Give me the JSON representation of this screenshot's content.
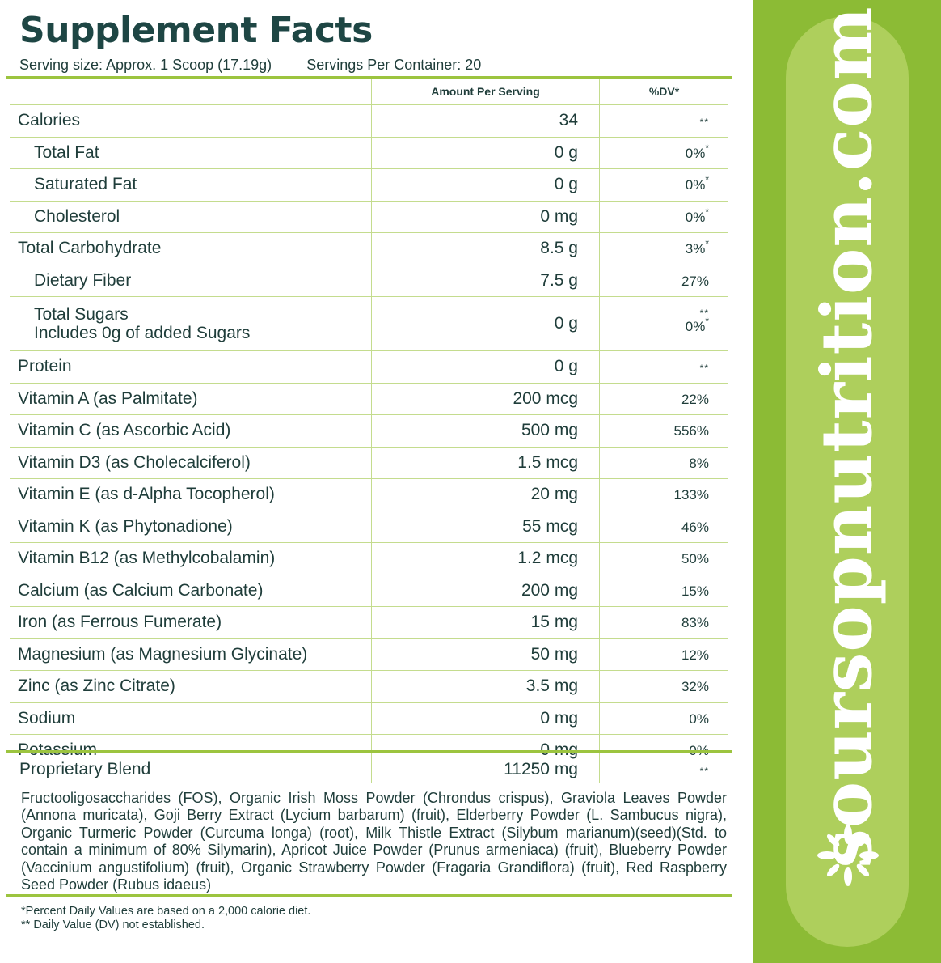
{
  "title": "Supplement Facts",
  "serving_size": "Serving size: Approx. 1 Scoop (17.19g)",
  "servings_per_container": "Servings Per Container: 20",
  "columns": {
    "amount": "Amount Per Serving",
    "dv": "%DV*"
  },
  "rows": [
    {
      "name": "Calories",
      "amount": "34",
      "dv": "",
      "mark": "**",
      "indent": false
    },
    {
      "name": "Total Fat",
      "amount": "0 g",
      "dv": "0%",
      "mark": "*",
      "indent": true
    },
    {
      "name": "Saturated Fat",
      "amount": "0 g",
      "dv": "0%",
      "mark": "*",
      "indent": true
    },
    {
      "name": "Cholesterol",
      "amount": "0 mg",
      "dv": "0%",
      "mark": "*",
      "indent": true
    },
    {
      "name": "Total Carbohydrate",
      "amount": "8.5 g",
      "dv": "3%",
      "mark": "*",
      "indent": false
    },
    {
      "name": "Dietary Fiber",
      "amount": "7.5 g",
      "dv": "27%",
      "mark": "",
      "indent": true
    },
    {
      "name": "Protein",
      "amount": "0 g",
      "dv": "",
      "mark": "**",
      "indent": false
    },
    {
      "name": "Vitamin A (as Palmitate)",
      "amount": "200 mcg",
      "dv": "22%",
      "mark": "",
      "indent": false
    },
    {
      "name": "Vitamin C (as Ascorbic Acid)",
      "amount": "500 mg",
      "dv": "556%",
      "mark": "",
      "indent": false
    },
    {
      "name": "Vitamin D3 (as Cholecalciferol)",
      "amount": "1.5 mcg",
      "dv": "8%",
      "mark": "",
      "indent": false
    },
    {
      "name": "Vitamin E (as d-Alpha Tocopherol)",
      "amount": "20 mg",
      "dv": "133%",
      "mark": "",
      "indent": false
    },
    {
      "name": "Vitamin K (as Phytonadione)",
      "amount": "55 mcg",
      "dv": "46%",
      "mark": "",
      "indent": false
    },
    {
      "name": "Vitamin B12 (as Methylcobalamin)",
      "amount": "1.2 mcg",
      "dv": "50%",
      "mark": "",
      "indent": false
    },
    {
      "name": "Calcium (as Calcium Carbonate)",
      "amount": "200 mg",
      "dv": "15%",
      "mark": "",
      "indent": false
    },
    {
      "name": "Iron (as Ferrous Fumerate)",
      "amount": "15 mg",
      "dv": "83%",
      "mark": "",
      "indent": false
    },
    {
      "name": "Magnesium (as Magnesium Glycinate)",
      "amount": "50 mg",
      "dv": "12%",
      "mark": "",
      "indent": false
    },
    {
      "name": "Zinc (as Zinc Citrate)",
      "amount": "3.5 mg",
      "dv": "32%",
      "mark": "",
      "indent": false
    },
    {
      "name": "Sodium",
      "amount": "0 mg",
      "dv": "0%",
      "mark": "",
      "indent": false
    },
    {
      "name": "Potassium",
      "amount": "0 mg",
      "dv": "0%",
      "mark": "",
      "indent": false
    }
  ],
  "sugars": {
    "name_line1": "Total Sugars",
    "name_line2": "Includes 0g of added Sugars",
    "amount": "0 g",
    "dv": "0%",
    "mark_top": "**",
    "mark": "*"
  },
  "blend": {
    "name": "Proprietary Blend",
    "amount": "11250 mg",
    "mark": "**"
  },
  "ingredients": "Fructooligosaccharides (FOS), Organic Irish Moss Powder (Chrondus crispus), Graviola Leaves Powder (Annona muricata), Goji Berry Extract (Lycium barbarum) (fruit), Elderberry Powder (L. Sambucus nigra), Organic Turmeric Powder (Curcuma longa) (root), Milk Thistle Extract (Silybum marianum)(seed)(Std. to contain a minimum of 80% Silymarin), Apricot Juice Powder (Prunus armeniaca) (fruit), Blueberry Powder (Vaccinium angustifolium) (fruit), Organic Strawberry Powder (Fragaria Grandiflora) (fruit), Red Raspberry Seed Powder (Rubus idaeus)",
  "footnotes": {
    "percent_dv": "*Percent Daily Values are based on a 2,000 calorie diet.",
    "not_established": "** Daily Value (DV) not established."
  },
  "brand": "soursopnutrition.com",
  "colors": {
    "accent_green": "#9cc43f",
    "side_green": "#8cbb35",
    "pill_green": "#aecf5c",
    "title_teal": "#1e4644"
  },
  "icons": {
    "burst": "starburst-icon"
  }
}
